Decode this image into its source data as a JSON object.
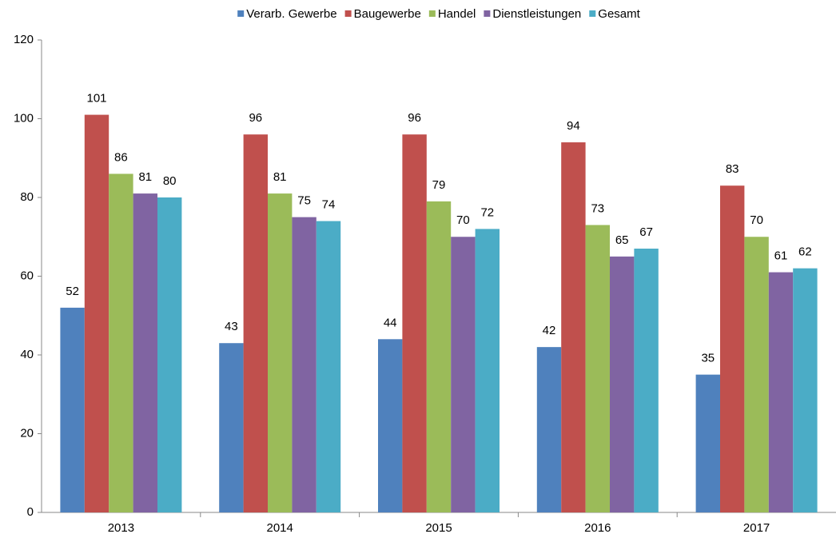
{
  "chart_data": {
    "type": "bar",
    "categories": [
      "2013",
      "2014",
      "2015",
      "2016",
      "2017"
    ],
    "series": [
      {
        "name": "Verarb. Gewerbe",
        "color": "#4f81bd",
        "values": [
          52,
          43,
          44,
          42,
          35
        ]
      },
      {
        "name": "Baugewerbe",
        "color": "#c0504d",
        "values": [
          101,
          96,
          96,
          94,
          83
        ]
      },
      {
        "name": "Handel",
        "color": "#9bbb59",
        "values": [
          86,
          81,
          79,
          73,
          70
        ]
      },
      {
        "name": "Dienstleistungen",
        "color": "#8064a2",
        "values": [
          81,
          75,
          70,
          65,
          61
        ]
      },
      {
        "name": "Gesamt",
        "color": "#4bacc6",
        "values": [
          80,
          74,
          72,
          67,
          62
        ]
      }
    ],
    "ylim": [
      0,
      120
    ],
    "yticks": [
      0,
      20,
      40,
      60,
      80,
      100,
      120
    ],
    "grid": false,
    "legend": "top"
  }
}
